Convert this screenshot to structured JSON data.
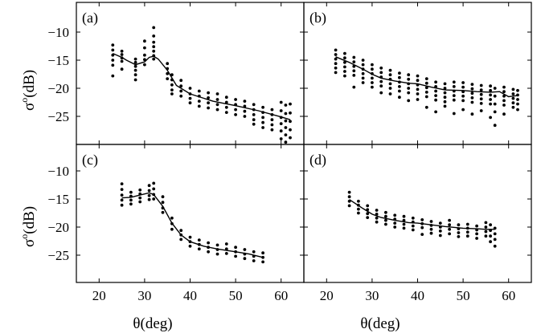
{
  "chart_data": [
    {
      "panel": "(a)",
      "type": "scatter",
      "xlim": [
        15,
        65
      ],
      "ylim": [
        -30,
        -5
      ],
      "xticks": [
        20,
        30,
        40,
        50,
        60
      ],
      "yticks": [
        -10,
        -15,
        -20,
        -25
      ],
      "fit_line": [
        [
          23,
          -13.8
        ],
        [
          25,
          -14.5
        ],
        [
          26,
          -15.0
        ],
        [
          28,
          -15.8
        ],
        [
          30,
          -15.3
        ],
        [
          31,
          -14.5
        ],
        [
          32,
          -14.3
        ],
        [
          33,
          -14.8
        ],
        [
          35,
          -16.8
        ],
        [
          37,
          -19.5
        ],
        [
          40,
          -21.0
        ],
        [
          45,
          -22.3
        ],
        [
          50,
          -23.1
        ],
        [
          55,
          -24.0
        ],
        [
          60,
          -25.1
        ],
        [
          62,
          -25.6
        ]
      ],
      "scatter": [
        {
          "x": 23,
          "ys": [
            -12.3,
            -13.2,
            -14.1,
            -15.0,
            -15.9,
            -17.8
          ]
        },
        {
          "x": 25,
          "ys": [
            -13.4,
            -14.0,
            -14.6,
            -15.2,
            -16.6
          ]
        },
        {
          "x": 28,
          "ys": [
            -14.8,
            -15.4,
            -16.1,
            -16.8,
            -17.6,
            -18.5
          ]
        },
        {
          "x": 30,
          "ys": [
            -11.6,
            -12.8,
            -14.1,
            -14.9,
            -15.8
          ]
        },
        {
          "x": 32,
          "ys": [
            -9.2,
            -10.7,
            -11.8,
            -12.6,
            -13.4,
            -14.2,
            -14.8
          ]
        },
        {
          "x": 35,
          "ys": [
            -15.6,
            -16.5,
            -17.4,
            -18.3
          ]
        },
        {
          "x": 36,
          "ys": [
            -17.6,
            -18.5,
            -19.4,
            -20.3,
            -21.0
          ]
        },
        {
          "x": 38,
          "ys": [
            -18.6,
            -19.6,
            -20.5,
            -21.4
          ]
        },
        {
          "x": 40,
          "ys": [
            -20.0,
            -21.0,
            -21.8,
            -22.6
          ]
        },
        {
          "x": 42,
          "ys": [
            -20.5,
            -21.4,
            -22.3,
            -23.2
          ]
        },
        {
          "x": 44,
          "ys": [
            -20.8,
            -21.7,
            -22.6,
            -23.5
          ]
        },
        {
          "x": 46,
          "ys": [
            -21.0,
            -22.0,
            -22.9,
            -23.8
          ]
        },
        {
          "x": 48,
          "ys": [
            -21.6,
            -22.5,
            -23.4,
            -24.3
          ]
        },
        {
          "x": 50,
          "ys": [
            -22.0,
            -22.9,
            -23.8,
            -24.7
          ]
        },
        {
          "x": 52,
          "ys": [
            -22.3,
            -23.2,
            -24.1,
            -25.0
          ]
        },
        {
          "x": 54,
          "ys": [
            -22.9,
            -23.8,
            -24.7,
            -25.6,
            -26.4
          ]
        },
        {
          "x": 56,
          "ys": [
            -23.4,
            -24.3,
            -25.2,
            -26.1,
            -27.0
          ]
        },
        {
          "x": 58,
          "ys": [
            -23.8,
            -24.7,
            -25.6,
            -26.5,
            -27.4
          ]
        },
        {
          "x": 60,
          "ys": [
            -22.5,
            -24.0,
            -25.2,
            -26.3,
            -27.6,
            -29.0
          ]
        },
        {
          "x": 61,
          "ys": [
            -23.0,
            -24.5,
            -25.8,
            -27.0,
            -28.3,
            -29.6
          ]
        },
        {
          "x": 62,
          "ys": [
            -22.8,
            -24.4,
            -25.9,
            -27.4,
            -28.8
          ]
        }
      ]
    },
    {
      "panel": "(b)",
      "type": "scatter",
      "xlim": [
        15,
        65
      ],
      "ylim": [
        -30,
        -5
      ],
      "xticks": [
        20,
        30,
        40,
        50,
        60
      ],
      "yticks": [
        -10,
        -15,
        -20,
        -25
      ],
      "fit_line": [
        [
          22,
          -14.4
        ],
        [
          25,
          -15.4
        ],
        [
          28,
          -16.6
        ],
        [
          30,
          -17.5
        ],
        [
          32,
          -18.2
        ],
        [
          35,
          -18.7
        ],
        [
          38,
          -19.1
        ],
        [
          40,
          -19.2
        ],
        [
          43,
          -19.8
        ],
        [
          46,
          -20.3
        ],
        [
          50,
          -20.4
        ],
        [
          53,
          -20.6
        ],
        [
          56,
          -20.7
        ],
        [
          58,
          -20.6
        ],
        [
          60,
          -21.5
        ],
        [
          62,
          -21.3
        ]
      ],
      "scatter": [
        {
          "x": 22,
          "ys": [
            -13.2,
            -14.0,
            -14.8,
            -15.6,
            -16.4,
            -17.2
          ]
        },
        {
          "x": 24,
          "ys": [
            -13.8,
            -14.6,
            -15.4,
            -16.2,
            -17.0,
            -17.8
          ]
        },
        {
          "x": 26,
          "ys": [
            -14.5,
            -15.3,
            -16.1,
            -16.9,
            -17.7,
            -19.8
          ]
        },
        {
          "x": 28,
          "ys": [
            -15.0,
            -15.8,
            -16.6,
            -17.4,
            -18.2,
            -19.0
          ]
        },
        {
          "x": 30,
          "ys": [
            -15.8,
            -16.6,
            -17.4,
            -18.2,
            -19.0,
            -19.8
          ]
        },
        {
          "x": 32,
          "ys": [
            -16.4,
            -17.2,
            -18.0,
            -18.8,
            -19.6,
            -20.8
          ]
        },
        {
          "x": 34,
          "ys": [
            -16.8,
            -17.6,
            -18.4,
            -19.2,
            -20.0,
            -21.0
          ]
        },
        {
          "x": 36,
          "ys": [
            -17.3,
            -18.1,
            -18.9,
            -19.7,
            -20.5,
            -21.6
          ]
        },
        {
          "x": 38,
          "ys": [
            -17.6,
            -18.4,
            -19.2,
            -20.0,
            -20.8,
            -22.2
          ]
        },
        {
          "x": 40,
          "ys": [
            -17.8,
            -18.6,
            -19.4,
            -20.2,
            -21.0,
            -22.0
          ]
        },
        {
          "x": 42,
          "ys": [
            -18.3,
            -19.1,
            -19.9,
            -20.7,
            -21.5,
            -23.4
          ]
        },
        {
          "x": 44,
          "ys": [
            -18.9,
            -19.7,
            -20.5,
            -21.3,
            -22.1,
            -24.2
          ]
        },
        {
          "x": 46,
          "ys": [
            -19.2,
            -20.0,
            -20.8,
            -21.6,
            -22.4,
            -23.2
          ]
        },
        {
          "x": 48,
          "ys": [
            -18.9,
            -19.7,
            -20.5,
            -21.3,
            -22.1,
            -24.5
          ]
        },
        {
          "x": 50,
          "ys": [
            -19.0,
            -19.8,
            -20.6,
            -21.4,
            -22.2,
            -23.8
          ]
        },
        {
          "x": 52,
          "ys": [
            -19.3,
            -20.1,
            -20.9,
            -21.7,
            -22.5,
            -24.6
          ]
        },
        {
          "x": 54,
          "ys": [
            -19.5,
            -20.3,
            -21.1,
            -21.9,
            -22.7,
            -24.0
          ]
        },
        {
          "x": 56,
          "ys": [
            -19.6,
            -20.4,
            -21.2,
            -22.0,
            -22.8,
            -25.2
          ]
        },
        {
          "x": 57,
          "ys": [
            -20.0,
            -21.4,
            -22.8,
            -24.2,
            -26.6
          ]
        },
        {
          "x": 59,
          "ys": [
            -19.8,
            -20.6,
            -21.4,
            -22.2,
            -23.0,
            -24.6
          ]
        },
        {
          "x": 61,
          "ys": [
            -20.2,
            -21.0,
            -21.8,
            -22.6,
            -23.4
          ]
        },
        {
          "x": 62,
          "ys": [
            -20.4,
            -21.2,
            -22.0,
            -22.8,
            -23.8
          ]
        }
      ]
    },
    {
      "panel": "(c)",
      "type": "scatter",
      "xlim": [
        15,
        65
      ],
      "ylim": [
        -30,
        -5
      ],
      "xticks": [
        20,
        30,
        40,
        50,
        60
      ],
      "yticks": [
        -10,
        -15,
        -20,
        -25
      ],
      "fit_line": [
        [
          25,
          -14.8
        ],
        [
          27,
          -14.7
        ],
        [
          29,
          -14.3
        ],
        [
          31,
          -13.9
        ],
        [
          32,
          -14.2
        ],
        [
          34,
          -16.3
        ],
        [
          36,
          -19.3
        ],
        [
          38,
          -21.4
        ],
        [
          40,
          -22.6
        ],
        [
          43,
          -23.4
        ],
        [
          46,
          -23.9
        ],
        [
          50,
          -24.4
        ],
        [
          53,
          -24.8
        ],
        [
          56,
          -25.4
        ]
      ],
      "scatter": [
        {
          "x": 25,
          "ys": [
            -12.3,
            -13.3,
            -14.3,
            -15.2,
            -16.1
          ]
        },
        {
          "x": 27,
          "ys": [
            -13.8,
            -14.5,
            -15.2,
            -15.9
          ]
        },
        {
          "x": 29,
          "ys": [
            -13.4,
            -14.1,
            -14.8,
            -15.5
          ]
        },
        {
          "x": 31,
          "ys": [
            -12.6,
            -13.5,
            -14.4,
            -15.1
          ]
        },
        {
          "x": 32,
          "ys": [
            -12.2,
            -13.2,
            -14.2,
            -15.0
          ]
        },
        {
          "x": 34,
          "ys": [
            -14.6,
            -15.6,
            -16.6,
            -17.4
          ]
        },
        {
          "x": 36,
          "ys": [
            -18.4,
            -19.4,
            -20.4
          ]
        },
        {
          "x": 38,
          "ys": [
            -20.6,
            -21.4,
            -22.2
          ]
        },
        {
          "x": 40,
          "ys": [
            -21.8,
            -22.6,
            -23.4
          ]
        },
        {
          "x": 42,
          "ys": [
            -22.3,
            -23.1,
            -23.9
          ]
        },
        {
          "x": 44,
          "ys": [
            -22.8,
            -23.6,
            -24.4
          ]
        },
        {
          "x": 46,
          "ys": [
            -23.2,
            -24.0,
            -24.8
          ]
        },
        {
          "x": 48,
          "ys": [
            -23.0,
            -23.9,
            -24.7
          ]
        },
        {
          "x": 50,
          "ys": [
            -23.6,
            -24.4,
            -25.2
          ]
        },
        {
          "x": 52,
          "ys": [
            -24.0,
            -24.8,
            -25.6
          ]
        },
        {
          "x": 54,
          "ys": [
            -24.4,
            -25.2,
            -26.0
          ]
        },
        {
          "x": 56,
          "ys": [
            -24.6,
            -25.4,
            -26.2
          ]
        }
      ]
    },
    {
      "panel": "(d)",
      "type": "scatter",
      "xlim": [
        15,
        65
      ],
      "ylim": [
        -30,
        -5
      ],
      "xticks": [
        20,
        30,
        40,
        50,
        60
      ],
      "yticks": [
        -10,
        -15,
        -20,
        -25
      ],
      "fit_line": [
        [
          25,
          -15.1
        ],
        [
          28,
          -16.7
        ],
        [
          30,
          -17.7
        ],
        [
          32,
          -18.3
        ],
        [
          35,
          -18.8
        ],
        [
          38,
          -19.2
        ],
        [
          40,
          -19.3
        ],
        [
          43,
          -19.6
        ],
        [
          46,
          -19.9
        ],
        [
          50,
          -20.2
        ],
        [
          53,
          -20.3
        ],
        [
          55,
          -20.4
        ],
        [
          57,
          -20.4
        ]
      ],
      "scatter": [
        {
          "x": 25,
          "ys": [
            -13.8,
            -14.6,
            -15.4,
            -16.2
          ]
        },
        {
          "x": 27,
          "ys": [
            -15.4,
            -16.1,
            -16.8,
            -17.5
          ]
        },
        {
          "x": 29,
          "ys": [
            -16.2,
            -16.9,
            -17.6,
            -18.3
          ]
        },
        {
          "x": 31,
          "ys": [
            -17.0,
            -17.7,
            -18.4,
            -19.1
          ]
        },
        {
          "x": 33,
          "ys": [
            -17.4,
            -18.1,
            -18.8,
            -19.5
          ]
        },
        {
          "x": 35,
          "ys": [
            -17.9,
            -18.6,
            -19.3,
            -20.0
          ]
        },
        {
          "x": 37,
          "ys": [
            -18.1,
            -18.8,
            -19.5,
            -20.2
          ]
        },
        {
          "x": 39,
          "ys": [
            -18.4,
            -19.1,
            -19.8,
            -20.5
          ]
        },
        {
          "x": 41,
          "ys": [
            -18.7,
            -19.4,
            -20.1,
            -21.3
          ]
        },
        {
          "x": 43,
          "ys": [
            -19.0,
            -19.7,
            -20.4,
            -21.1
          ]
        },
        {
          "x": 45,
          "ys": [
            -19.3,
            -20.0,
            -20.7,
            -21.5
          ]
        },
        {
          "x": 47,
          "ys": [
            -18.8,
            -19.6,
            -20.4,
            -21.2
          ]
        },
        {
          "x": 49,
          "ys": [
            -19.6,
            -20.3,
            -21.0,
            -21.7
          ]
        },
        {
          "x": 51,
          "ys": [
            -19.5,
            -20.2,
            -20.9,
            -21.6
          ]
        },
        {
          "x": 53,
          "ys": [
            -19.8,
            -20.5,
            -21.2,
            -22.0
          ]
        },
        {
          "x": 55,
          "ys": [
            -19.2,
            -20.0,
            -20.8,
            -21.6
          ]
        },
        {
          "x": 56,
          "ys": [
            -19.6,
            -20.6,
            -21.6,
            -22.6
          ]
        },
        {
          "x": 57,
          "ys": [
            -20.2,
            -21.2,
            -22.2,
            -23.4
          ]
        }
      ]
    }
  ],
  "axes": {
    "ylabel_main": "σ",
    "ylabel_sup": "o",
    "ylabel_unit": "(dB)",
    "xlabel": "θ(deg)"
  }
}
